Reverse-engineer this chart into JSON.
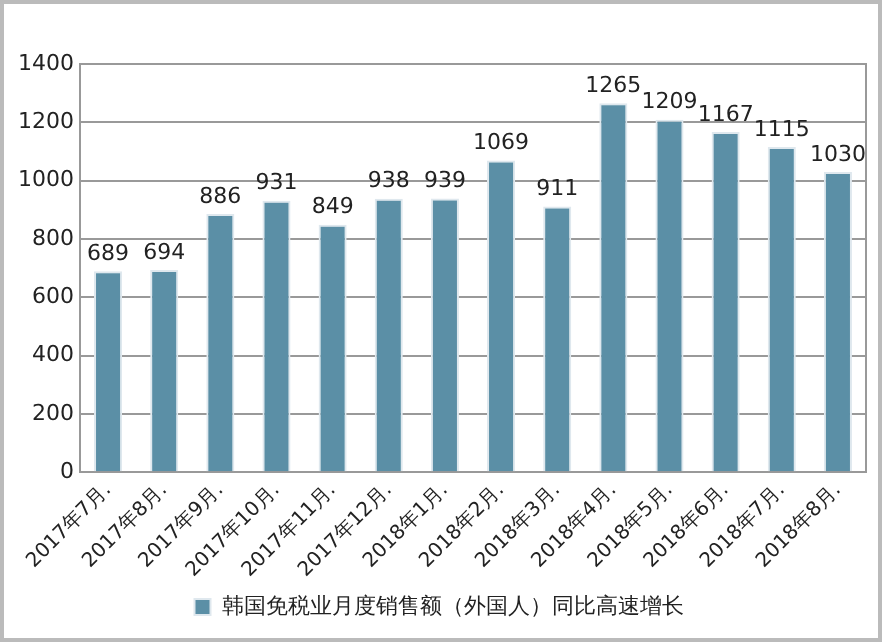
{
  "chart_data": {
    "type": "bar",
    "categories": [
      "2017年7月.",
      "2017年8月.",
      "2017年9月.",
      "2017年10月.",
      "2017年11月.",
      "2017年12月.",
      "2018年1月.",
      "2018年2月.",
      "2018年3月.",
      "2018年4月.",
      "2018年5月.",
      "2018年6月.",
      "2018年7月.",
      "2018年8月."
    ],
    "series": [
      {
        "name": "韩国免税业月度销售额（外国人）同比高速增长",
        "color": "#5b8fa6",
        "values": [
          689,
          694,
          886,
          931,
          849,
          938,
          939,
          1069,
          911,
          1265,
          1209,
          1167,
          1115,
          1030
        ]
      }
    ],
    "ylim": [
      0,
      1400
    ],
    "yticks": [
      0,
      200,
      400,
      600,
      800,
      1000,
      1200,
      1400
    ],
    "grid": "y",
    "legend": "bottom",
    "data_labels": true
  }
}
